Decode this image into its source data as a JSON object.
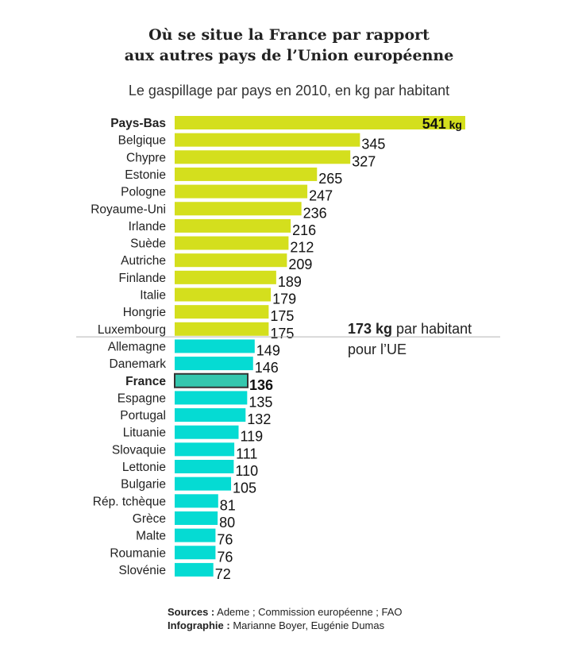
{
  "chart_data": {
    "type": "bar",
    "orientation": "horizontal",
    "title_lines": [
      "Où se situe la France par rapport",
      "aux autres pays de l’Union européenne"
    ],
    "subtitle": "Le gaspillage par pays en 2010, en kg par habitant",
    "categories": [
      "Pays-Bas",
      "Belgique",
      "Chypre",
      "Estonie",
      "Pologne",
      "Royaume-Uni",
      "Irlande",
      "Suède",
      "Autriche",
      "Finlande",
      "Italie",
      "Hongrie",
      "Luxembourg",
      "Allemagne",
      "Danemark",
      "France",
      "Espagne",
      "Portugal",
      "Lituanie",
      "Slovaquie",
      "Lettonie",
      "Bulgarie",
      "Rép. tchèque",
      "Grèce",
      "Malte",
      "Roumanie",
      "Slovénie"
    ],
    "values": [
      541,
      345,
      327,
      265,
      247,
      236,
      216,
      212,
      209,
      189,
      179,
      175,
      175,
      149,
      146,
      136,
      135,
      132,
      119,
      111,
      110,
      105,
      81,
      80,
      76,
      76,
      72
    ],
    "value_labels": [
      "541",
      "345",
      "327",
      "265",
      "247",
      "236",
      "216",
      "212",
      "209",
      "189",
      "179",
      "175",
      "175",
      "149",
      "146",
      "136",
      "135",
      "132",
      "119",
      "111",
      "110",
      "105",
      "81",
      "80",
      "76",
      "76",
      "72"
    ],
    "first_value_unit": "kg",
    "highlight": [
      "Pays-Bas",
      "France"
    ],
    "reference": {
      "value": 173,
      "label_bold": "173 kg",
      "label_rest": " par habitant",
      "label_line2": "pour l’UE"
    },
    "colors": {
      "above": "#d4df1d",
      "below": "#05dbd3",
      "highlight_fill": "#35c7ae",
      "highlight_stroke": "#333333",
      "reference_line": "#b4b4b4"
    }
  },
  "footer": {
    "sources_label": "Sources :",
    "sources_text": " Ademe ; Commission européenne ; FAO",
    "credit_label": "Infographie :",
    "credit_text": " Marianne Boyer, Eugénie Dumas"
  }
}
